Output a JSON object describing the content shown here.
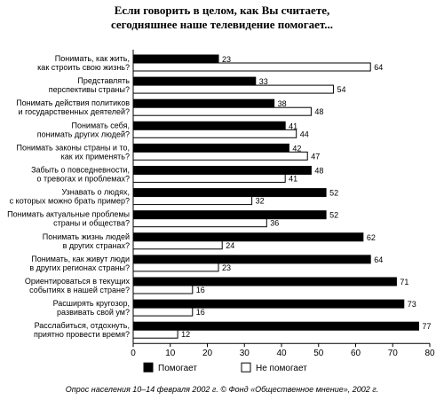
{
  "title_lines": [
    "Если говорить в целом, как Вы считаете,",
    "сегодняшнее наше телевидение помогает..."
  ],
  "source": "Опрос населения 10–14 февраля 2002 г. © Фонд «Общественное мнение», 2002 г.",
  "colors": {
    "helps": "#000000",
    "not_helps": "#ffffff",
    "stroke": "#000000"
  },
  "chart_data": {
    "type": "bar",
    "orientation": "horizontal",
    "title": "Если говорить в целом, как Вы считаете, сегодняшнее наше телевидение помогает...",
    "xlim": [
      0,
      80
    ],
    "x_ticks": [
      "0",
      "10",
      "20",
      "30",
      "40",
      "50",
      "60",
      "70",
      "80"
    ],
    "legend_position": "bottom",
    "categories": [
      [
        "Понимать, как жить,",
        "как строить свою жизнь?"
      ],
      [
        "Представлять",
        "перспективы страны?"
      ],
      [
        "Понимать действия политиков",
        "и государственных деятелей?"
      ],
      [
        "Понимать себя,",
        "понимать других людей?"
      ],
      [
        "Понимать законы страны и то,",
        "как их применять?"
      ],
      [
        "Забыть о повседневности,",
        "о тревогах и проблемах?"
      ],
      [
        "Узнавать о людях,",
        "с которых можно брать пример?"
      ],
      [
        "Понимать актуальные проблемы",
        "страны и общества?"
      ],
      [
        "Понимать жизнь людей",
        "в других странах?"
      ],
      [
        "Понимать, как живут люди",
        "в других регионах страны?"
      ],
      [
        "Ориентироваться в текущих",
        "событиях в нашей стране?"
      ],
      [
        "Расширять кругозор,",
        "развивать свой ум?"
      ],
      [
        "Расслабиться, отдохнуть,",
        "приятно провести время?"
      ]
    ],
    "series": [
      {
        "name": "Помогает",
        "values": [
          23,
          33,
          38,
          41,
          42,
          48,
          52,
          52,
          62,
          64,
          71,
          73,
          77
        ]
      },
      {
        "name": "Не помогает",
        "values": [
          64,
          54,
          48,
          44,
          47,
          41,
          32,
          36,
          24,
          23,
          16,
          16,
          12
        ]
      }
    ]
  }
}
